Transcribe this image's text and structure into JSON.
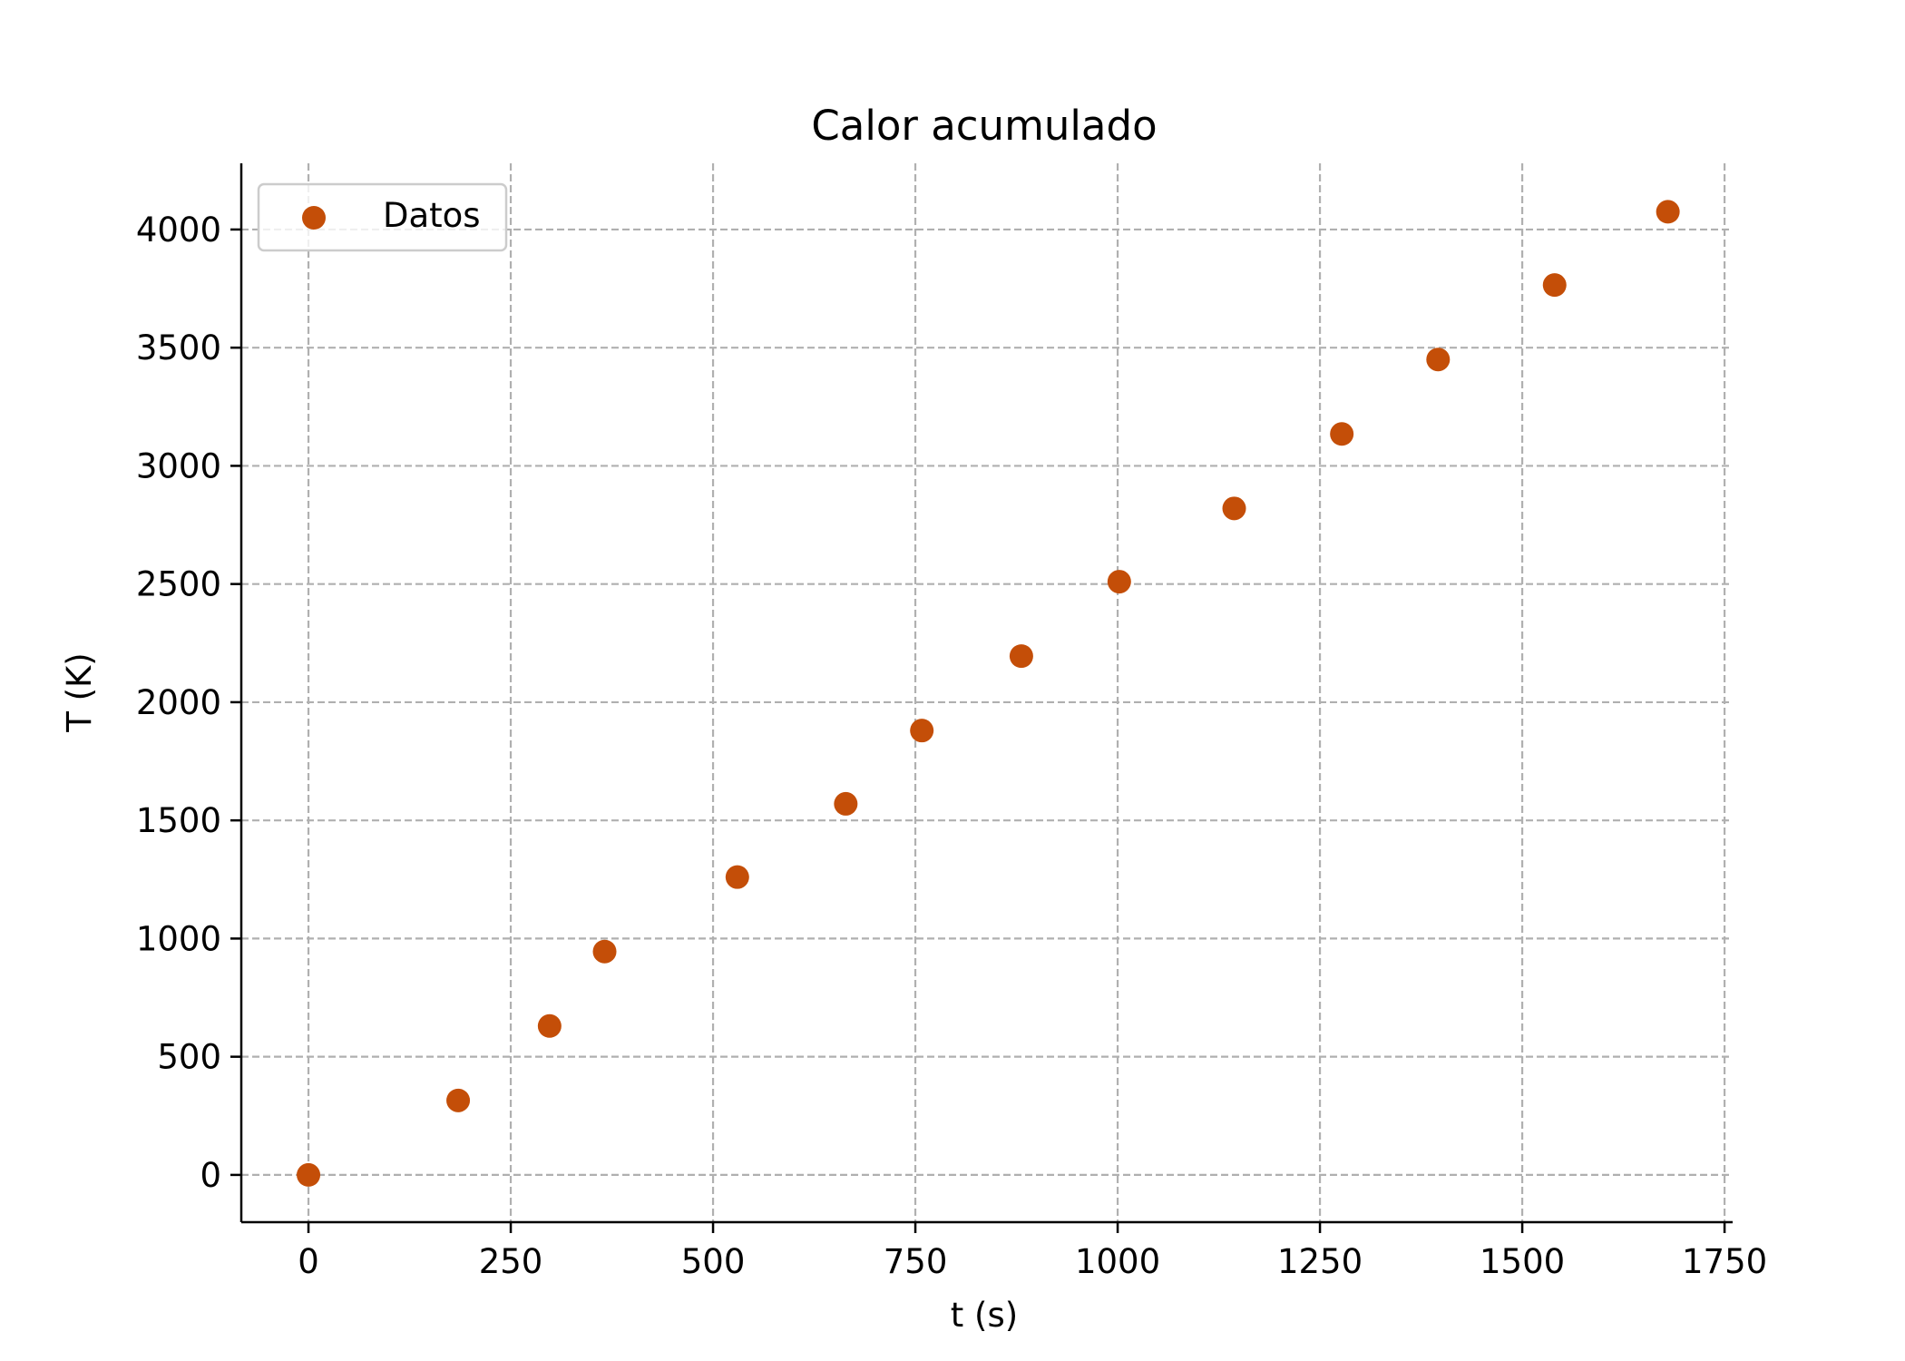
{
  "chart_data": {
    "type": "scatter",
    "title": "Calor acumulado",
    "xlabel": "t (s)",
    "ylabel": "T (K)",
    "xlim": [
      -83,
      1760
    ],
    "ylim": [
      -200,
      4280
    ],
    "xticks": [
      0,
      250,
      500,
      750,
      1000,
      1250,
      1500,
      1750
    ],
    "yticks": [
      0,
      500,
      1000,
      1500,
      2000,
      2500,
      3000,
      3500,
      4000
    ],
    "grid": true,
    "legend_position": "top-left",
    "series": [
      {
        "name": "Datos",
        "color": "#c44e08",
        "marker": "circle",
        "x": [
          0,
          185,
          298,
          366,
          530,
          664,
          758,
          881,
          1002,
          1144,
          1277,
          1396,
          1540,
          1680
        ],
        "y": [
          0,
          315,
          630,
          945,
          1260,
          1570,
          1880,
          2195,
          2510,
          2820,
          3135,
          3450,
          3765,
          4075
        ]
      }
    ]
  }
}
